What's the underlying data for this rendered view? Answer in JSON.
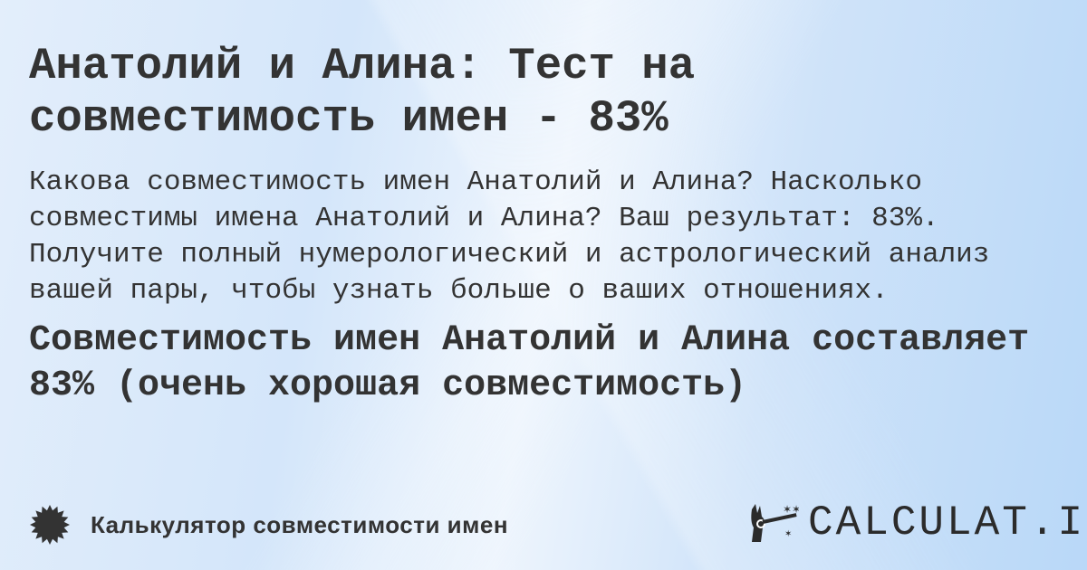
{
  "title": "Анатолий и Алина: Тест на совместимость имен - 83%",
  "description": "Какова совместимость имен Анатолий и Алина? Насколько совместимы имена Анатолий и Алина? Ваш результат: 83%. Получите полный нумерологический и астрологический анализ вашей пары, чтобы узнать больше о ваших отношениях.",
  "result": "Совместимость имен Анатолий и Алина составляет 83% (очень хорошая совместимость)",
  "footer": {
    "label": "Калькулятор совместимости имен",
    "icon": "badge-icon"
  },
  "logo": {
    "text": "CALCULAT.IO",
    "icon": "magic-hand-icon"
  },
  "colors": {
    "text": "#333333",
    "background": "#d4e6fa"
  }
}
